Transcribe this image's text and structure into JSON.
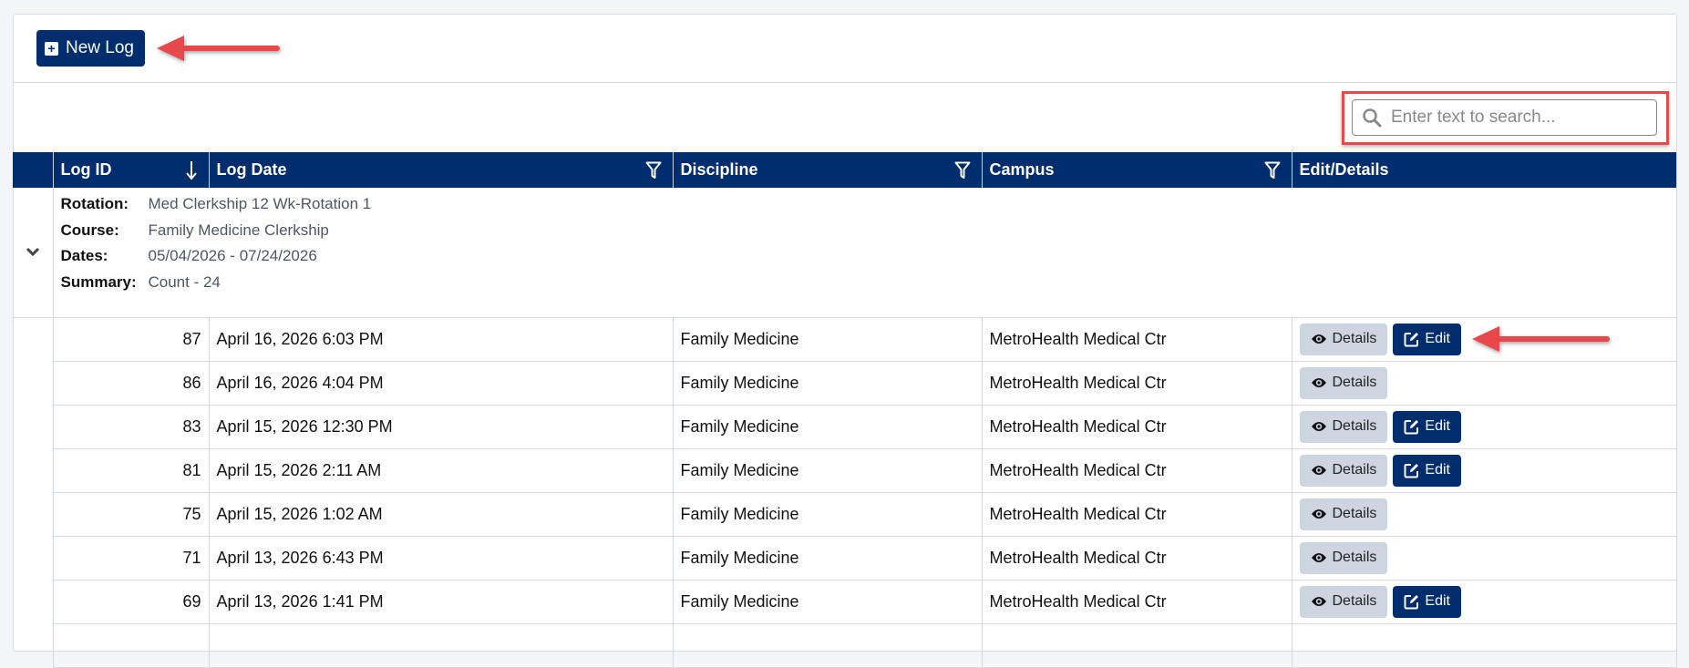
{
  "toolbar": {
    "new_log_label": "New Log"
  },
  "search": {
    "placeholder": "Enter text to search..."
  },
  "columns": [
    "Log ID",
    "Log Date",
    "Discipline",
    "Campus",
    "Edit/Details"
  ],
  "group": {
    "rotation_label": "Rotation:",
    "rotation": "Med Clerkship 12 Wk-Rotation 1",
    "course_label": "Course:",
    "course": "Family Medicine Clerkship",
    "dates_label": "Dates:",
    "dates": "05/04/2026 - 07/24/2026",
    "summary_label": "Summary:",
    "summary": "Count - 24"
  },
  "buttons": {
    "details": "Details",
    "edit": "Edit"
  },
  "rows": [
    {
      "id": "87",
      "date": "April 16, 2026 6:03 PM",
      "discipline": "Family Medicine",
      "campus": "MetroHealth Medical Ctr",
      "editable": true
    },
    {
      "id": "86",
      "date": "April 16, 2026 4:04 PM",
      "discipline": "Family Medicine",
      "campus": "MetroHealth Medical Ctr",
      "editable": false
    },
    {
      "id": "83",
      "date": "April 15, 2026 12:30 PM",
      "discipline": "Family Medicine",
      "campus": "MetroHealth Medical Ctr",
      "editable": true
    },
    {
      "id": "81",
      "date": "April 15, 2026 2:11 AM",
      "discipline": "Family Medicine",
      "campus": "MetroHealth Medical Ctr",
      "editable": true
    },
    {
      "id": "75",
      "date": "April 15, 2026 1:02 AM",
      "discipline": "Family Medicine",
      "campus": "MetroHealth Medical Ctr",
      "editable": false
    },
    {
      "id": "71",
      "date": "April 13, 2026 6:43 PM",
      "discipline": "Family Medicine",
      "campus": "MetroHealth Medical Ctr",
      "editable": false
    },
    {
      "id": "69",
      "date": "April 13, 2026 1:41 PM",
      "discipline": "Family Medicine",
      "campus": "MetroHealth Medical Ctr",
      "editable": true
    }
  ],
  "colors": {
    "header": "#002d6e",
    "details_button": "#cdd5e0",
    "annotation": "#e8474b"
  }
}
